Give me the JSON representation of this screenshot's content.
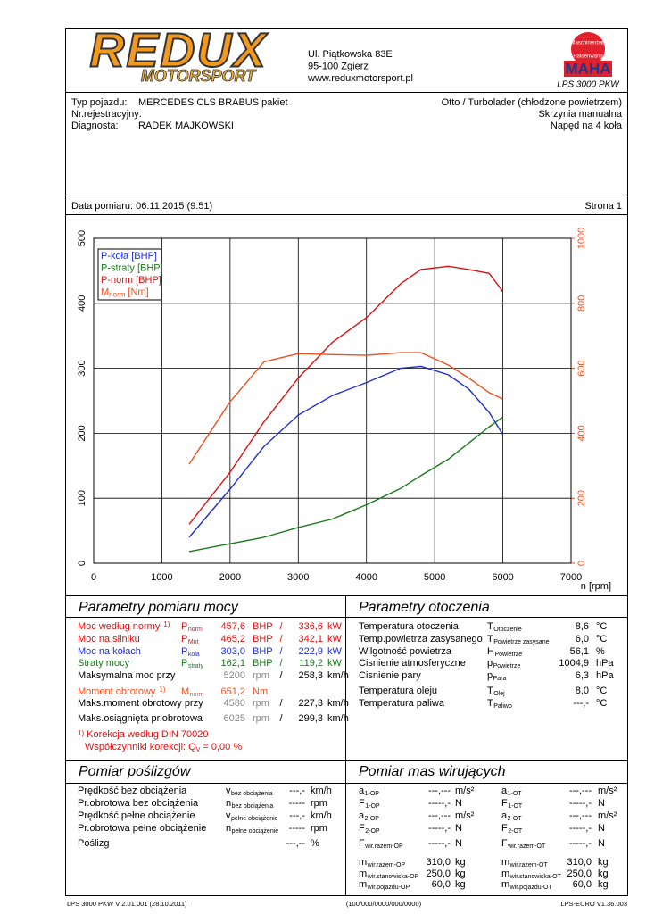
{
  "header": {
    "logo_title": "REDUX",
    "logo_sub": "MOTORSPORT",
    "address": [
      "Ul. Piątkowska 83E",
      "95-100 Zgierz",
      "www.reduxmotorsport.pl"
    ],
    "badge_top": "Maschinenbau",
    "badge_bottom": "Haldenwang",
    "maha": "MAHA",
    "model": "LPS 3000 PKW"
  },
  "vehicle": {
    "left": [
      {
        "label": "Typ pojazdu:",
        "value": "MERCEDES CLS BRABUS pakiet"
      },
      {
        "label": "Nr.rejestracyjny:"
      },
      {
        "label": "Diagnosta:",
        "value": "RADEK MAJKOWSKI"
      }
    ],
    "right": [
      "Otto / Turbolader (chłodzone powietrzem)",
      "Skrzynia manualna",
      "Napęd na 4 koła"
    ]
  },
  "date": "Data pomiaru: 06.11.2015 (9:51)",
  "page": "Strona 1",
  "chart_data": {
    "type": "line",
    "x": [
      1400,
      2000,
      2500,
      3000,
      3500,
      4000,
      4500,
      4800,
      5200,
      5500,
      5800,
      6000
    ],
    "series": [
      {
        "name": "P-koła [BHP]",
        "color": "#1f2fd6",
        "values": [
          40,
          114,
          180,
          228,
          258,
          278,
          300,
          303,
          290,
          268,
          232,
          198
        ]
      },
      {
        "name": "P-straty [BHP]",
        "color": "#1a7a1a",
        "values": [
          18,
          30,
          40,
          55,
          68,
          90,
          115,
          135,
          160,
          185,
          210,
          225
        ]
      },
      {
        "name": "P-norm [BHP]",
        "color": "#e01010",
        "values": [
          60,
          140,
          218,
          285,
          340,
          378,
          430,
          452,
          457,
          452,
          446,
          418
        ]
      },
      {
        "name": "M",
        "name_sub": "norm",
        "name_unit": "[Nm]",
        "color": "#f05020",
        "axis": "y2",
        "values": [
          305,
          497,
          620,
          645,
          642,
          640,
          648,
          648,
          610,
          570,
          525,
          505
        ]
      }
    ],
    "xlim": [
      0,
      7000
    ],
    "xticks": [
      0,
      1000,
      2000,
      3000,
      4000,
      5000,
      6000,
      7000
    ],
    "ylim": [
      0,
      500
    ],
    "yticks": [
      0,
      100,
      200,
      300,
      400,
      500
    ],
    "y2lim": [
      0,
      1000
    ],
    "y2ticks": [
      0,
      200,
      400,
      600,
      800,
      1000
    ],
    "y2_color": "#f05020",
    "xlabel": "n [rpm]",
    "grid": true
  },
  "measure": {
    "title": "Parametry pomiaru mocy",
    "rows": [
      {
        "label": "Moc według normy",
        "note": "1)",
        "symbol": "P",
        "sub": "norm",
        "value": "457,6",
        "unit": "BHP",
        "sep": "/",
        "value2": "336,6",
        "unit2": "kW",
        "color": "#e01010"
      },
      {
        "label": "Moc na silniku",
        "symbol": "P",
        "sub": "Mot",
        "value": "465,2",
        "unit": "BHP",
        "sep": "/",
        "value2": "342,1",
        "unit2": "kW",
        "color": "#e01010"
      },
      {
        "label": "Moc na kołach",
        "symbol": "P",
        "sub": "koła",
        "value": "303,0",
        "unit": "BHP",
        "sep": "/",
        "value2": "222,9",
        "unit2": "kW",
        "color": "#1f2fd6"
      },
      {
        "label": "Straty mocy",
        "symbol": "P",
        "sub": "straty",
        "value": "162,1",
        "unit": "BHP",
        "sep": "/",
        "value2": "119,2",
        "unit2": "kW",
        "color": "#1a7a1a"
      },
      {
        "label": "Maksymalna moc przy",
        "value": "5200",
        "unit": "rpm",
        "sep": "/",
        "value2": "258,3",
        "unit2": "km/h",
        "color": "#000000",
        "value_color": "#888888"
      },
      {
        "label": "Moment obrotowy",
        "note": "1)",
        "symbol": "M",
        "sub": "norm",
        "value": "651,2",
        "unit": "Nm",
        "color": "#f05020"
      },
      {
        "label": "Maks.moment obrotowy przy",
        "value": "4580",
        "unit": "rpm",
        "sep": "/",
        "value2": "227,3",
        "unit2": "km/h",
        "color": "#000000",
        "value_color": "#888888"
      },
      {
        "label": "Maks.osiągnięta pr.obrotowa",
        "value": "6025",
        "unit": "rpm",
        "sep": "/",
        "value2": "299,3",
        "unit2": "km/h",
        "color": "#000000",
        "value_color": "#888888"
      }
    ],
    "note_mark": "1)",
    "note": "Korekcja według DIN 70020",
    "factor": "Współczynniki korekcji: Q",
    "factor_sub": "V",
    "factor_value": "=   0,00 %",
    "note_color": "#e01010"
  },
  "environment": {
    "title": "Parametry otoczenia",
    "rows": [
      {
        "label": "Temperatura otoczenia",
        "symbol": "T",
        "sub": "Otoczenie",
        "value": "8,6",
        "unit": "°C"
      },
      {
        "label": "Temp.powietrza zasysanego",
        "symbol": "T",
        "sub": "Powietrze zasysane",
        "value": "6,0",
        "unit": "°C"
      },
      {
        "label": "Wilgotność powietrza",
        "symbol": "H",
        "sub": "Powietrze",
        "value": "56,1",
        "unit": "%"
      },
      {
        "label": "Cisnienie atmosferyczne",
        "symbol": "p",
        "sub": "Powietrze",
        "value": "1004,9",
        "unit": "hPa"
      },
      {
        "label": "Cisnienie pary",
        "symbol": "p",
        "sub": "Para",
        "value": "6,3",
        "unit": "hPa"
      },
      {
        "label": "Temperatura oleju",
        "symbol": "T",
        "sub": "Olej",
        "value": "8,0",
        "unit": "°C"
      },
      {
        "label": "Temperatura paliwa",
        "symbol": "T",
        "sub": "Paliwo",
        "value": "---,-",
        "unit": "°C"
      }
    ]
  },
  "slip": {
    "title": "Pomiar poślizgów",
    "rows": [
      {
        "label": "Prędkość bez obciążenia",
        "symbol": "v",
        "sub": "bez obciążenia",
        "value": "---,-",
        "unit": "km/h"
      },
      {
        "label": "Pr.obrotowa bez obciążenia",
        "symbol": "n",
        "sub": "bez obciążenia",
        "value": "-----",
        "unit": "rpm"
      },
      {
        "label": "Prędkość pełne obciążenie",
        "symbol": "v",
        "sub": "pełne obciążenie",
        "value": "---,-",
        "unit": "km/h"
      },
      {
        "label": "Pr.obrotowa pełne obciążenie",
        "symbol": "n",
        "sub": "pełne obciążenie",
        "value": "-----",
        "unit": "rpm"
      },
      {
        "label": "Poślizg",
        "value": "---,--",
        "unit": "%"
      }
    ]
  },
  "masses": {
    "title": "Pomiar mas wirujących",
    "left": [
      {
        "symbol": "a",
        "sub": "1-OP",
        "value": "---,---",
        "unit": "m/s²"
      },
      {
        "symbol": "F",
        "sub": "1-OP",
        "value": "-----,-",
        "unit": "N"
      },
      {
        "symbol": "a",
        "sub": "2-OP",
        "value": "---,---",
        "unit": "m/s²"
      },
      {
        "symbol": "F",
        "sub": "2-OP",
        "value": "-----,-",
        "unit": "N"
      },
      {
        "symbol": "F",
        "sub": "wir.razem-OP",
        "value": "-----,-",
        "unit": "N"
      },
      {
        "symbol": "m",
        "sub": "wir.razem-OP",
        "value": "310,0",
        "unit": "kg"
      },
      {
        "symbol": "m",
        "sub": "wir.stanowiska-OP",
        "value": "250,0",
        "unit": "kg"
      },
      {
        "symbol": "m",
        "sub": "wir.pojazdu-OP",
        "value": "60,0",
        "unit": "kg"
      }
    ],
    "right": [
      {
        "symbol": "a",
        "sub": "1-OT",
        "value": "---,---",
        "unit": "m/s²"
      },
      {
        "symbol": "F",
        "sub": "1-OT",
        "value": "-----,-",
        "unit": "N"
      },
      {
        "symbol": "a",
        "sub": "2-OT",
        "value": "---,---",
        "unit": "m/s²"
      },
      {
        "symbol": "F",
        "sub": "2-OT",
        "value": "-----,-",
        "unit": "N"
      },
      {
        "symbol": "F",
        "sub": "wir.razem-OT",
        "value": "-----,-",
        "unit": "N"
      },
      {
        "symbol": "m",
        "sub": "wir.razem-OT",
        "value": "310,0",
        "unit": "kg"
      },
      {
        "symbol": "m",
        "sub": "wir.stanowiska-OT",
        "value": "250,0",
        "unit": "kg"
      },
      {
        "symbol": "m",
        "sub": "wir.pojazdu-OT",
        "value": "60,0",
        "unit": "kg"
      }
    ]
  },
  "footer": [
    "LPS 3000 PKW V 2.01.001 (28.10.2011)",
    "(100/000/0000/000/0000)",
    "LPS-EURO V1.36.003"
  ]
}
